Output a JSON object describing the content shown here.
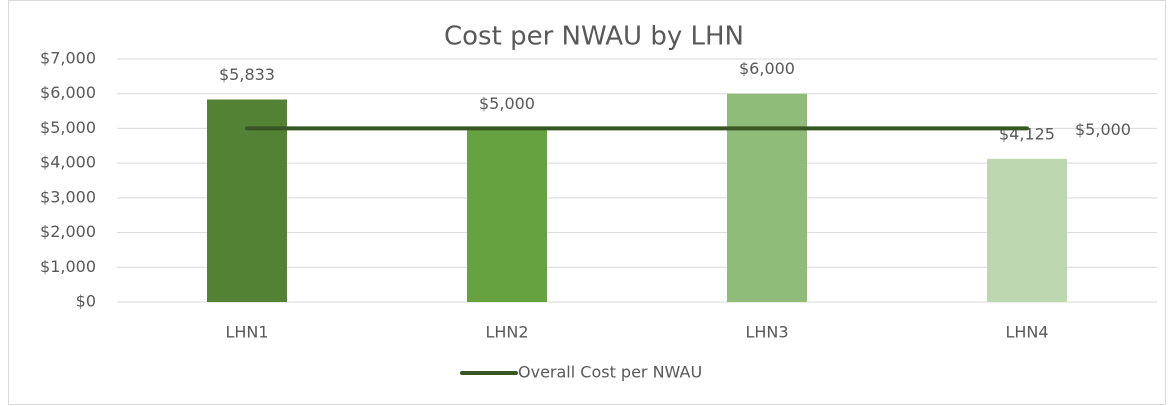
{
  "chart_data": {
    "type": "bar",
    "title": "Cost per NWAU by LHN",
    "categories": [
      "LHN1",
      "LHN2",
      "LHN3",
      "LHN4"
    ],
    "values": [
      5833,
      5000,
      6000,
      4125
    ],
    "value_labels": [
      "$5,833",
      "$5,000",
      "$6,000",
      "$4,125"
    ],
    "colors": [
      "#548235",
      "#66a340",
      "#8fbc78",
      "#bdd7b0"
    ],
    "series": [
      {
        "name": "Overall Cost per NWAU",
        "type": "line",
        "color": "#375623",
        "values": [
          5000,
          5000,
          5000,
          5000
        ],
        "value_labels": [
          null,
          null,
          null,
          "$5,000"
        ]
      }
    ],
    "ylim": [
      0,
      7000
    ],
    "yticks": [
      {
        "value": 0,
        "label": "$0"
      },
      {
        "value": 1000,
        "label": "$1,000"
      },
      {
        "value": 2000,
        "label": "$2,000"
      },
      {
        "value": 3000,
        "label": "$3,000"
      },
      {
        "value": 4000,
        "label": "$4,000"
      },
      {
        "value": 5000,
        "label": "$5,000"
      },
      {
        "value": 6000,
        "label": "$6,000"
      },
      {
        "value": 7000,
        "label": "$7,000"
      }
    ],
    "grid": true,
    "legend": "bottom"
  }
}
